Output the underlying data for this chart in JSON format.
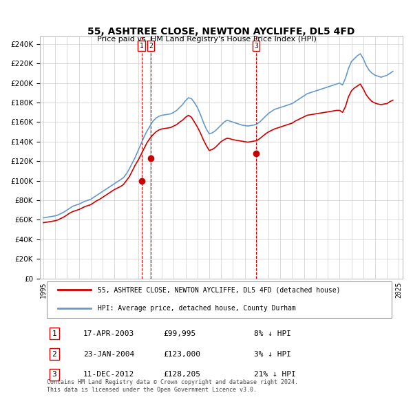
{
  "title": "55, ASHTREE CLOSE, NEWTON AYCLIFFE, DL5 4FD",
  "subtitle": "Price paid vs. HM Land Registry's House Price Index (HPI)",
  "ylabel_ticks": [
    "£0",
    "£20K",
    "£40K",
    "£60K",
    "£80K",
    "£100K",
    "£120K",
    "£140K",
    "£160K",
    "£180K",
    "£200K",
    "£220K",
    "£240K"
  ],
  "ytick_values": [
    0,
    20000,
    40000,
    60000,
    80000,
    100000,
    120000,
    140000,
    160000,
    180000,
    200000,
    220000,
    240000
  ],
  "ylim": [
    0,
    248000
  ],
  "hpi_color": "#6699cc",
  "price_color": "#cc0000",
  "marker_color": "#cc0000",
  "vline_color": "#cc0000",
  "grid_color": "#cccccc",
  "bg_color": "#ffffff",
  "legend_box_color": "#cc0000",
  "transactions": [
    {
      "label": "1",
      "date": "17-APR-2003",
      "price": 99995,
      "hpi_diff": "8% ↓ HPI",
      "year": 2003.29
    },
    {
      "label": "2",
      "date": "23-JAN-2004",
      "price": 123000,
      "hpi_diff": "3% ↓ HPI",
      "year": 2004.06
    },
    {
      "label": "3",
      "date": "11-DEC-2012",
      "price": 128205,
      "hpi_diff": "21% ↓ HPI",
      "year": 2012.95
    }
  ],
  "hpi_data_x": [
    1995,
    1995.25,
    1995.5,
    1995.75,
    1996,
    1996.25,
    1996.5,
    1996.75,
    1997,
    1997.25,
    1997.5,
    1997.75,
    1998,
    1998.25,
    1998.5,
    1998.75,
    1999,
    1999.25,
    1999.5,
    1999.75,
    2000,
    2000.25,
    2000.5,
    2000.75,
    2001,
    2001.25,
    2001.5,
    2001.75,
    2002,
    2002.25,
    2002.5,
    2002.75,
    2003,
    2003.25,
    2003.5,
    2003.75,
    2004,
    2004.25,
    2004.5,
    2004.75,
    2005,
    2005.25,
    2005.5,
    2005.75,
    2006,
    2006.25,
    2006.5,
    2006.75,
    2007,
    2007.25,
    2007.5,
    2007.75,
    2008,
    2008.25,
    2008.5,
    2008.75,
    2009,
    2009.25,
    2009.5,
    2009.75,
    2010,
    2010.25,
    2010.5,
    2010.75,
    2011,
    2011.25,
    2011.5,
    2011.75,
    2012,
    2012.25,
    2012.5,
    2012.75,
    2013,
    2013.25,
    2013.5,
    2013.75,
    2014,
    2014.25,
    2014.5,
    2014.75,
    2015,
    2015.25,
    2015.5,
    2015.75,
    2016,
    2016.25,
    2016.5,
    2016.75,
    2017,
    2017.25,
    2017.5,
    2017.75,
    2018,
    2018.25,
    2018.5,
    2018.75,
    2019,
    2019.25,
    2019.5,
    2019.75,
    2020,
    2020.25,
    2020.5,
    2020.75,
    2021,
    2021.25,
    2021.5,
    2021.75,
    2022,
    2022.25,
    2022.5,
    2022.75,
    2023,
    2023.25,
    2023.5,
    2023.75,
    2024,
    2024.25,
    2024.5
  ],
  "hpi_data_y": [
    62000,
    62500,
    63000,
    63500,
    64000,
    65000,
    66500,
    68000,
    70000,
    72000,
    74000,
    75000,
    76000,
    77500,
    79000,
    80000,
    81000,
    83000,
    85000,
    87000,
    89000,
    91000,
    93000,
    95000,
    97000,
    99000,
    101000,
    103000,
    107000,
    112000,
    118000,
    124000,
    131000,
    138000,
    145000,
    151000,
    156000,
    161000,
    164000,
    166000,
    167000,
    167500,
    168000,
    168500,
    170000,
    172000,
    175000,
    178000,
    182000,
    185000,
    184000,
    180000,
    175000,
    168000,
    160000,
    153000,
    148000,
    149000,
    151000,
    154000,
    157000,
    160000,
    162000,
    161000,
    160000,
    159000,
    158000,
    157000,
    156500,
    156000,
    156500,
    157000,
    158000,
    160000,
    163000,
    166000,
    169000,
    171000,
    173000,
    174000,
    175000,
    176000,
    177000,
    178000,
    179000,
    181000,
    183000,
    185000,
    187000,
    189000,
    190000,
    191000,
    192000,
    193000,
    194000,
    195000,
    196000,
    197000,
    198000,
    199000,
    200000,
    198000,
    205000,
    215000,
    222000,
    225000,
    228000,
    230000,
    225000,
    218000,
    213000,
    210000,
    208000,
    207000,
    206000,
    207000,
    208000,
    210000,
    212000
  ],
  "price_data_x": [
    1995,
    1995.25,
    1995.5,
    1995.75,
    1996,
    1996.25,
    1996.5,
    1996.75,
    1997,
    1997.25,
    1997.5,
    1997.75,
    1998,
    1998.25,
    1998.5,
    1998.75,
    1999,
    1999.25,
    1999.5,
    1999.75,
    2000,
    2000.25,
    2000.5,
    2000.75,
    2001,
    2001.25,
    2001.5,
    2001.75,
    2002,
    2002.25,
    2002.5,
    2002.75,
    2003,
    2003.25,
    2003.5,
    2003.75,
    2004,
    2004.25,
    2004.5,
    2004.75,
    2005,
    2005.25,
    2005.5,
    2005.75,
    2006,
    2006.25,
    2006.5,
    2006.75,
    2007,
    2007.25,
    2007.5,
    2007.75,
    2008,
    2008.25,
    2008.5,
    2008.75,
    2009,
    2009.25,
    2009.5,
    2009.75,
    2010,
    2010.25,
    2010.5,
    2010.75,
    2011,
    2011.25,
    2011.5,
    2011.75,
    2012,
    2012.25,
    2012.5,
    2012.75,
    2013,
    2013.25,
    2013.5,
    2013.75,
    2014,
    2014.25,
    2014.5,
    2014.75,
    2015,
    2015.25,
    2015.5,
    2015.75,
    2016,
    2016.25,
    2016.5,
    2016.75,
    2017,
    2017.25,
    2017.5,
    2017.75,
    2018,
    2018.25,
    2018.5,
    2018.75,
    2019,
    2019.25,
    2019.5,
    2019.75,
    2020,
    2020.25,
    2020.5,
    2020.75,
    2021,
    2021.25,
    2021.5,
    2021.75,
    2022,
    2022.25,
    2022.5,
    2022.75,
    2023,
    2023.25,
    2023.5,
    2023.75,
    2024,
    2024.25,
    2024.5
  ],
  "price_data_y": [
    57000,
    57500,
    58000,
    58500,
    59000,
    60000,
    61500,
    63000,
    65000,
    67000,
    68500,
    69500,
    70500,
    72000,
    73500,
    74500,
    75500,
    77500,
    79500,
    81000,
    83000,
    85000,
    87000,
    89000,
    91000,
    92500,
    94000,
    96000,
    100000,
    104000,
    110000,
    116000,
    121000,
    127000,
    133000,
    139000,
    143500,
    147000,
    150000,
    152000,
    153000,
    153500,
    154000,
    154500,
    156000,
    157500,
    160000,
    162000,
    165000,
    167000,
    165000,
    160000,
    155000,
    149000,
    142000,
    136000,
    131000,
    132000,
    134000,
    137000,
    140000,
    142000,
    143500,
    143000,
    142000,
    141500,
    141000,
    140500,
    140000,
    139500,
    140000,
    140500,
    141000,
    143000,
    145500,
    148000,
    150000,
    151500,
    153000,
    154000,
    155000,
    156000,
    157000,
    158000,
    159000,
    161000,
    162500,
    164000,
    165500,
    167000,
    167500,
    168000,
    168500,
    169000,
    169500,
    170000,
    170500,
    171000,
    171500,
    172000,
    172000,
    170000,
    176000,
    186000,
    192000,
    195000,
    197000,
    199000,
    194000,
    188000,
    184000,
    181000,
    179500,
    178500,
    178000,
    178500,
    179000,
    181000,
    182500
  ],
  "legend_line1": "55, ASHTREE CLOSE, NEWTON AYCLIFFE, DL5 4FD (detached house)",
  "legend_line2": "HPI: Average price, detached house, County Durham",
  "footer": "Contains HM Land Registry data © Crown copyright and database right 2024.\nThis data is licensed under the Open Government Licence v3.0.",
  "xtick_years": [
    1995,
    1996,
    1997,
    1998,
    1999,
    2000,
    2001,
    2002,
    2003,
    2004,
    2005,
    2006,
    2007,
    2008,
    2009,
    2010,
    2011,
    2012,
    2013,
    2014,
    2015,
    2016,
    2017,
    2018,
    2019,
    2020,
    2021,
    2022,
    2023,
    2024,
    2025
  ]
}
